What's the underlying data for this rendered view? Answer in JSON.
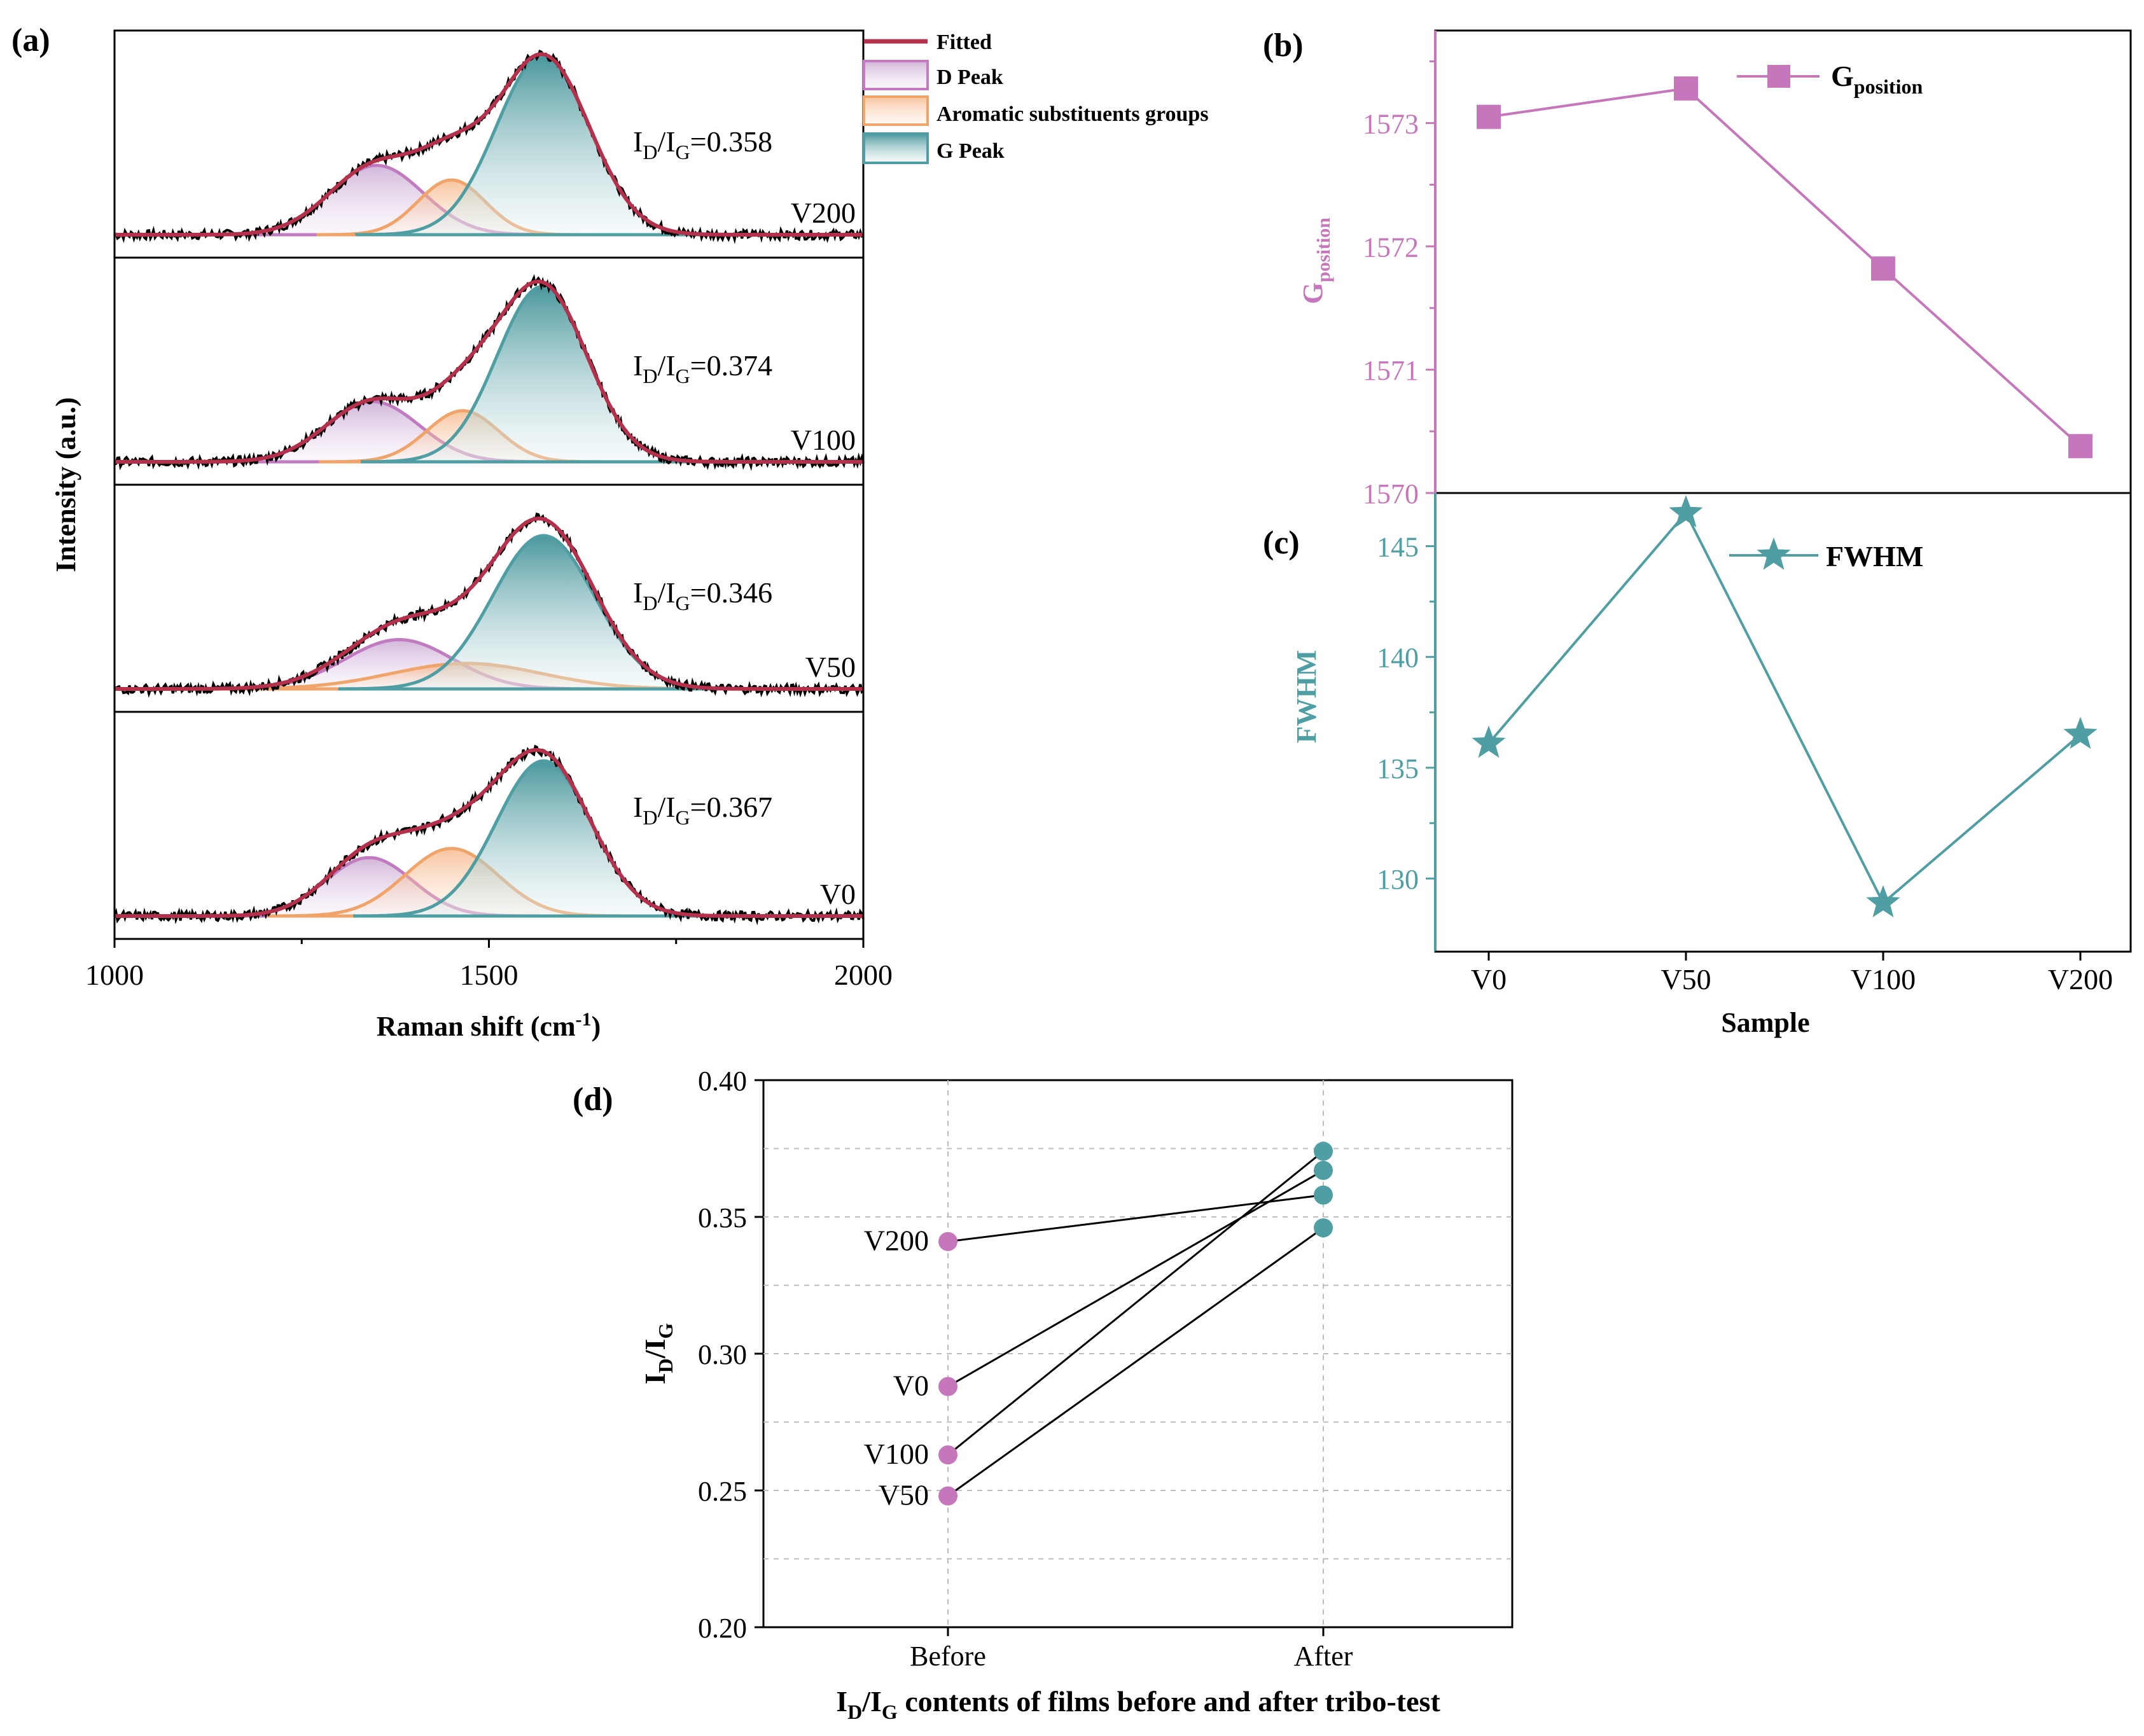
{
  "colors": {
    "fitted": "#b5304b",
    "d_peak": "#c27bc0",
    "aromatic": "#f0a469",
    "g_peak": "#4e9ea3",
    "raw": "#000000",
    "g_position": "#c676bb",
    "fwhm": "#4e9ea3",
    "before_marker": "#c676bb",
    "after_marker": "#4e9ea3"
  },
  "panels": {
    "a": "(a)",
    "b": "(b)",
    "c": "(c)",
    "d": "(d)"
  },
  "chart_data": [
    {
      "id": "a",
      "type": "line",
      "title": "",
      "xlabel": "Raman shift (cm",
      "xlabel_sup": "-1",
      "xlabel_end": ")",
      "ylabel": "Intensity (a.u.)",
      "xlim": [
        1000,
        2000
      ],
      "xticks": [
        1000,
        1500,
        2000
      ],
      "legend": {
        "position": "top-right",
        "entries": [
          "Fitted",
          "D Peak",
          "Aromatic substituents groups",
          "G Peak"
        ]
      },
      "series_components": [
        "raw",
        "fitted",
        "D Peak",
        "Aromatic substituents groups",
        "G Peak"
      ],
      "subplots": [
        {
          "sample": "V200",
          "id_ig": "0.358",
          "ratio_prefix": "I",
          "ratio_sub1": "D",
          "ratio_mid": "/I",
          "ratio_sub2": "G",
          "ratio_eq": "=",
          "d_peak": {
            "center": 1350,
            "height": 0.38,
            "width": 62
          },
          "aromatic": {
            "center": 1450,
            "height": 0.3,
            "width": 45
          },
          "g_peak": {
            "center": 1572,
            "height": 0.98,
            "width": 62
          }
        },
        {
          "sample": "V100",
          "id_ig": "0.374",
          "ratio_prefix": "I",
          "ratio_sub1": "D",
          "ratio_mid": "/I",
          "ratio_sub2": "G",
          "ratio_eq": "=",
          "d_peak": {
            "center": 1345,
            "height": 0.33,
            "width": 62
          },
          "aromatic": {
            "center": 1465,
            "height": 0.28,
            "width": 48
          },
          "g_peak": {
            "center": 1571,
            "height": 0.96,
            "width": 60
          }
        },
        {
          "sample": "V50",
          "id_ig": "0.346",
          "ratio_prefix": "I",
          "ratio_sub1": "D",
          "ratio_mid": "/I",
          "ratio_sub2": "G",
          "ratio_eq": "=",
          "d_peak": {
            "center": 1380,
            "height": 0.27,
            "width": 72
          },
          "aromatic": {
            "center": 1470,
            "height": 0.14,
            "width": 100
          },
          "g_peak": {
            "center": 1573,
            "height": 0.84,
            "width": 68
          }
        },
        {
          "sample": "V0",
          "id_ig": "0.367",
          "ratio_prefix": "I",
          "ratio_sub1": "D",
          "ratio_mid": "/I",
          "ratio_sub2": "G",
          "ratio_eq": "=",
          "d_peak": {
            "center": 1340,
            "height": 0.32,
            "width": 58
          },
          "aromatic": {
            "center": 1450,
            "height": 0.37,
            "width": 62
          },
          "g_peak": {
            "center": 1573,
            "height": 0.85,
            "width": 63
          }
        }
      ]
    },
    {
      "id": "b",
      "type": "line",
      "title": "",
      "ylabel": "G",
      "ylabel_sub": "position",
      "categories": [
        "V0",
        "V50",
        "V100",
        "V200"
      ],
      "series": [
        {
          "name": "G",
          "name_sub": "position",
          "values": [
            1573.05,
            1573.28,
            1571.82,
            1570.38
          ]
        }
      ],
      "ylim": [
        1570,
        1573.75
      ],
      "yticks": [
        1570,
        1571,
        1572,
        1573
      ],
      "legend": "top-right"
    },
    {
      "id": "c",
      "type": "line",
      "title": "",
      "xlabel": "Sample",
      "ylabel": "FWHM",
      "categories": [
        "V0",
        "V50",
        "V100",
        "V200"
      ],
      "series": [
        {
          "name": "FWHM",
          "values": [
            136.1,
            146.5,
            128.9,
            136.5
          ]
        }
      ],
      "ylim": [
        126.7,
        147.4
      ],
      "yticks": [
        130,
        135,
        140,
        145
      ],
      "legend": "top-right"
    },
    {
      "id": "d",
      "type": "scatter",
      "title": "",
      "xlabel_parts": {
        "p1": "I",
        "s1": "D",
        "p2": "/I",
        "s2": "G",
        "rest": " contents of films before and after tribo-test"
      },
      "ylabel_parts": {
        "p1": "I",
        "s1": "D",
        "p2": "/I",
        "s2": "G"
      },
      "categories": [
        "Before",
        "After"
      ],
      "ylim": [
        0.2,
        0.4
      ],
      "yticks": [
        "0.20",
        "0.25",
        "0.30",
        "0.35",
        "0.40"
      ],
      "grid": true,
      "series": [
        {
          "name": "V200",
          "values": [
            0.341,
            0.358
          ]
        },
        {
          "name": "V0",
          "values": [
            0.288,
            0.367
          ]
        },
        {
          "name": "V100",
          "values": [
            0.263,
            0.374
          ]
        },
        {
          "name": "V50",
          "values": [
            0.248,
            0.346
          ]
        }
      ]
    }
  ]
}
